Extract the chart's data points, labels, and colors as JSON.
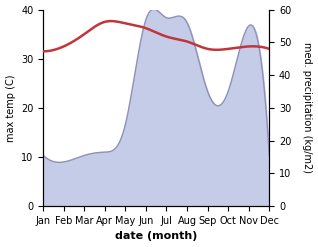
{
  "months": [
    "Jan",
    "Feb",
    "Mar",
    "Apr",
    "May",
    "Jun",
    "Jul",
    "Aug",
    "Sep",
    "Oct",
    "Nov",
    "Dec"
  ],
  "x": [
    0,
    1,
    2,
    3,
    4,
    5,
    6,
    7,
    8,
    9,
    10,
    11
  ],
  "temperature": [
    31.5,
    32.5,
    35.0,
    37.5,
    37.2,
    36.2,
    34.5,
    33.5,
    32.0,
    32.0,
    32.5,
    32.0
  ],
  "precipitation": [
    15.5,
    13.5,
    15.5,
    16.5,
    25.0,
    57.0,
    57.5,
    56.0,
    35.0,
    35.0,
    55.0,
    15.5
  ],
  "temp_color": "#c0363a",
  "precip_line_color": "#9090bb",
  "precip_fill_color": "#c5cce8",
  "temp_ylim": [
    0,
    40
  ],
  "precip_ylim": [
    0,
    60
  ],
  "xlabel": "date (month)",
  "ylabel_left": "max temp (C)",
  "ylabel_right": "med. precipitation (kg/m2)",
  "bg_color": "#ffffff",
  "label_fontsize": 8,
  "tick_fontsize": 7
}
